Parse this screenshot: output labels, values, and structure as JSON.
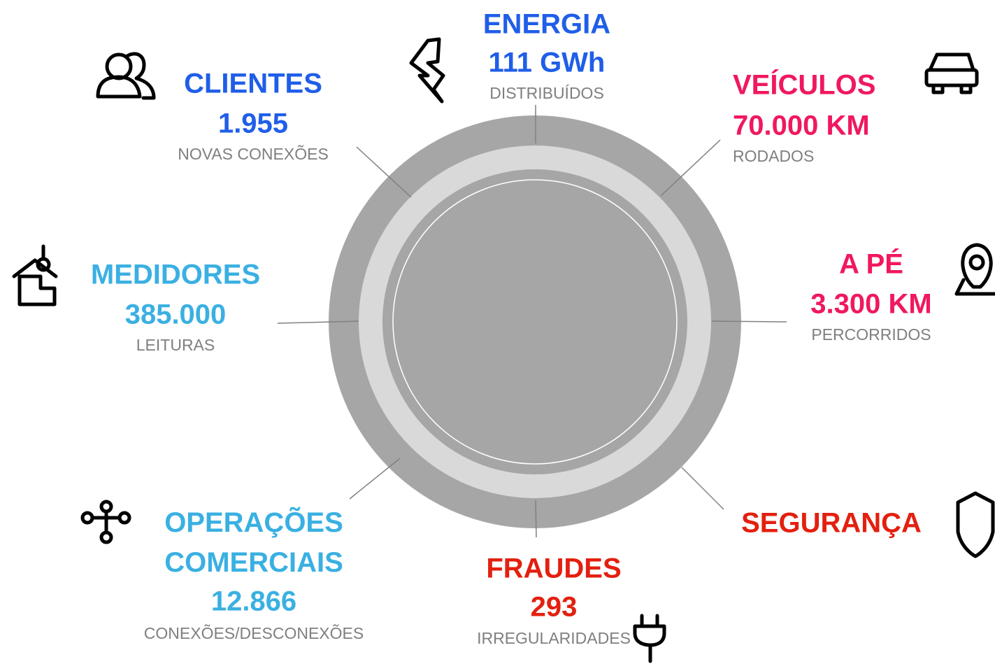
{
  "items": [
    {
      "title": "ENERGIA",
      "value": "111 GWh",
      "caption": "DISTRIBUÍDOS",
      "color": "#1f5ee8"
    },
    {
      "title": "CLIENTES",
      "value": "1.955",
      "caption": "NOVAS CONEXÕES",
      "color": "#1f5ee8"
    },
    {
      "title": "VEÍCULOS",
      "value": "70.000 KM",
      "caption": "RODADOS",
      "color": "#f0185e"
    },
    {
      "title": "MEDIDORES",
      "value": "385.000",
      "caption": "LEITURAS",
      "color": "#3ab0e2"
    },
    {
      "title": "A PÉ",
      "value": "3.300 KM",
      "caption": "PERCORRIDOS",
      "color": "#f0185e"
    },
    {
      "title": "OPERAÇÕES COMERCIAIS",
      "value": "12.866",
      "caption": "CONEXÕES/DESCONEXÕES",
      "color": "#3ab0e2"
    },
    {
      "title": "SEGURANÇA",
      "color": "#e3200f"
    },
    {
      "title": "FRAUDES",
      "value": "293",
      "caption": "IRREGULARIDADES",
      "color": "#e3200f"
    }
  ]
}
